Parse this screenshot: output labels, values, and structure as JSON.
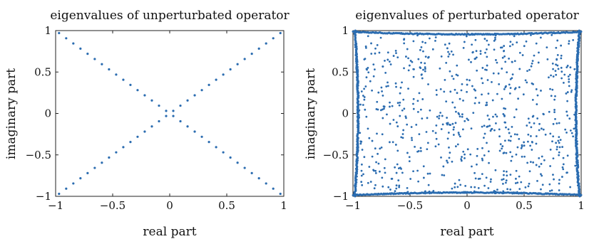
{
  "chart_data": [
    {
      "type": "scatter",
      "title": "eigenvalues of unperturbated operator",
      "xlabel": "real part",
      "ylabel": "imaginary part",
      "xlim": [
        -1,
        1
      ],
      "ylim": [
        -1,
        1
      ],
      "xticks": [
        -1,
        -0.5,
        0,
        0.5,
        1
      ],
      "yticks": [
        -1,
        -0.5,
        0,
        0.5,
        1
      ],
      "xtick_labels": [
        "−1",
        "−0.5",
        "0",
        "0.5",
        "1"
      ],
      "ytick_labels": [
        "−1",
        "−0.5",
        "0",
        "0.5",
        "1"
      ],
      "grid": false,
      "color": "#2b6cb0",
      "pattern": "two diagonal lines of equally spaced points",
      "points_per_diagonal": 32
    },
    {
      "type": "scatter",
      "title": "eigenvalues of perturbated operator",
      "xlabel": "real part",
      "ylabel": "imaginary part",
      "xlim": [
        -1,
        1
      ],
      "ylim": [
        -1,
        1
      ],
      "xticks": [
        -1,
        -0.5,
        0,
        0.5,
        1
      ],
      "yticks": [
        -1,
        -0.5,
        0,
        0.5,
        1
      ],
      "xtick_labels": [
        "−1",
        "−0.5",
        "0",
        "0.5",
        "1"
      ],
      "ytick_labels": [
        "−1",
        "−0.5",
        "0",
        "0.5",
        "1"
      ],
      "grid": false,
      "color": "#2b6cb0",
      "pattern": "dense points along the square boundary plus scattered points filling the interior",
      "interior_points": 700,
      "boundary_points_per_side": 260
    }
  ]
}
